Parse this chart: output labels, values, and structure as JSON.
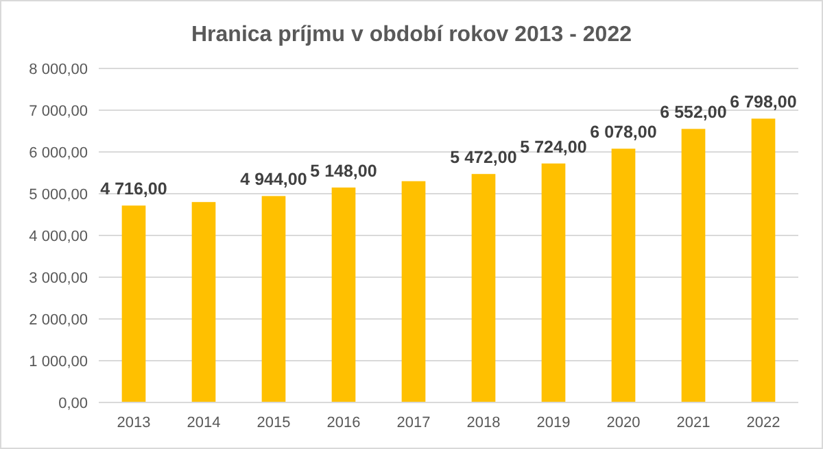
{
  "chart_data": {
    "type": "bar",
    "title": "Hranica príjmu v období rokov 2013 - 2022",
    "categories": [
      "2013",
      "2014",
      "2015",
      "2016",
      "2017",
      "2018",
      "2019",
      "2020",
      "2021",
      "2022"
    ],
    "values": [
      4716,
      4800,
      4944,
      5148,
      5300,
      5472,
      5724,
      6078,
      6552,
      6798
    ],
    "value_labels": [
      "4 716,00",
      null,
      "4 944,00",
      "5 148,00",
      null,
      "5 472,00",
      "5 724,00",
      "6 078,00",
      "6 552,00",
      "6 798,00"
    ],
    "color": "#ffc000",
    "ylim": [
      0,
      8000
    ],
    "yticks": [
      {
        "value": 0,
        "label": "0,00"
      },
      {
        "value": 1000,
        "label": "1 000,00"
      },
      {
        "value": 2000,
        "label": "2 000,00"
      },
      {
        "value": 3000,
        "label": "3 000,00"
      },
      {
        "value": 4000,
        "label": "4 000,00"
      },
      {
        "value": 5000,
        "label": "5 000,00"
      },
      {
        "value": 6000,
        "label": "6 000,00"
      },
      {
        "value": 7000,
        "label": "7 000,00"
      },
      {
        "value": 8000,
        "label": "8 000,00"
      }
    ],
    "grid": "y"
  }
}
